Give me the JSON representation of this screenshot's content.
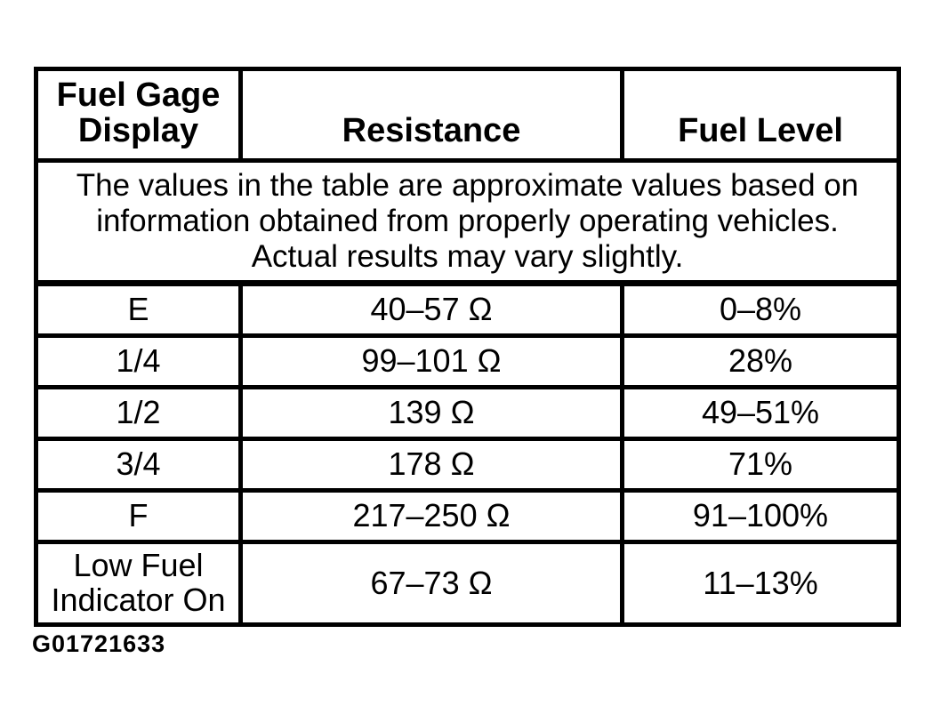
{
  "figure_id": "G01721633",
  "colors": {
    "ink": "#000000",
    "background": "#ffffff"
  },
  "table": {
    "columns": [
      "Fuel Gage Display",
      "Resistance",
      "Fuel Level"
    ],
    "note": "The values in the table are approximate values based on information obtained from properly operating vehicles. Actual results may vary slightly.",
    "rows": [
      {
        "display": "E",
        "resistance": "40–57 Ω",
        "fuel_level": "0–8%"
      },
      {
        "display": "1/4",
        "resistance": "99–101 Ω",
        "fuel_level": "28%"
      },
      {
        "display": "1/2",
        "resistance": "139 Ω",
        "fuel_level": "49–51%"
      },
      {
        "display": "3/4",
        "resistance": "178 Ω",
        "fuel_level": "71%"
      },
      {
        "display": "F",
        "resistance": "217–250 Ω",
        "fuel_level": "91–100%"
      },
      {
        "display": "Low Fuel Indicator On",
        "resistance": "67–73 Ω",
        "fuel_level": "11–13%"
      }
    ]
  }
}
